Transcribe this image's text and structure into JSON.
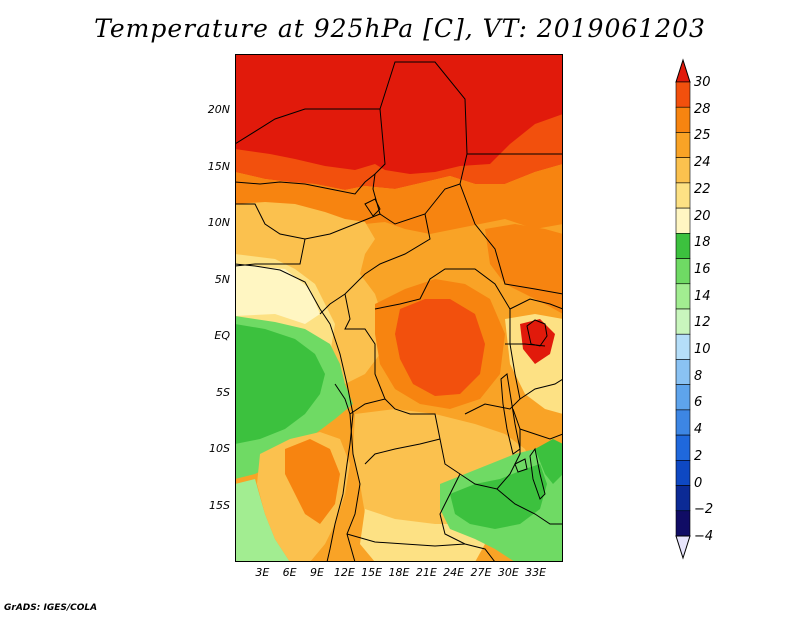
{
  "title": "Temperature at 925hPa [C], VT: 2019061203",
  "credit": "GrADS: IGES/COLA",
  "map": {
    "lon_range": [
      0,
      36
    ],
    "lat_range": [
      -20,
      25
    ],
    "lat_ticks": [
      {
        "value": 20,
        "label": "20N"
      },
      {
        "value": 15,
        "label": "15N"
      },
      {
        "value": 10,
        "label": "10N"
      },
      {
        "value": 5,
        "label": "5N"
      },
      {
        "value": 0,
        "label": "EQ"
      },
      {
        "value": -5,
        "label": "5S"
      },
      {
        "value": -10,
        "label": "10S"
      },
      {
        "value": -15,
        "label": "15S"
      }
    ],
    "lon_ticks": [
      {
        "value": 3,
        "label": "3E"
      },
      {
        "value": 6,
        "label": "6E"
      },
      {
        "value": 9,
        "label": "9E"
      },
      {
        "value": 12,
        "label": "12E"
      },
      {
        "value": 15,
        "label": "15E"
      },
      {
        "value": 18,
        "label": "18E"
      },
      {
        "value": 21,
        "label": "21E"
      },
      {
        "value": 24,
        "label": "24E"
      },
      {
        "value": 27,
        "label": "27E"
      },
      {
        "value": 30,
        "label": "30E"
      },
      {
        "value": 33,
        "label": "33E"
      }
    ]
  },
  "colorbar": {
    "levels": [
      "30",
      "28",
      "25",
      "24",
      "22",
      "20",
      "18",
      "16",
      "14",
      "12",
      "10",
      "8",
      "6",
      "4",
      "2",
      "0",
      "−2",
      "−4"
    ],
    "colors": [
      "#e11a0b",
      "#f2500d",
      "#f78410",
      "#f9a326",
      "#fbc14e",
      "#fde184",
      "#fff6c2",
      "#3cc13e",
      "#6fda64",
      "#a2ed91",
      "#c9f6bd",
      "#b5def9",
      "#8ac2f3",
      "#5ea4ec",
      "#3d86e4",
      "#1f68dc",
      "#0e48c3",
      "#0b2a95",
      "#100c65",
      "#e8e5fc"
    ]
  },
  "temperature_regions": {
    "note_levels": "color classes used in map shading",
    "hot": "#e11a0b",
    "very_warm": "#f2500d",
    "warm": "#f78410",
    "mild": "#f9a326",
    "moderate": "#fbc14e",
    "cool": "#fde184",
    "pale": "#fff6c2",
    "green": "#3cc13e",
    "light_green": "#6fda64",
    "pale_green": "#a2ed91"
  }
}
